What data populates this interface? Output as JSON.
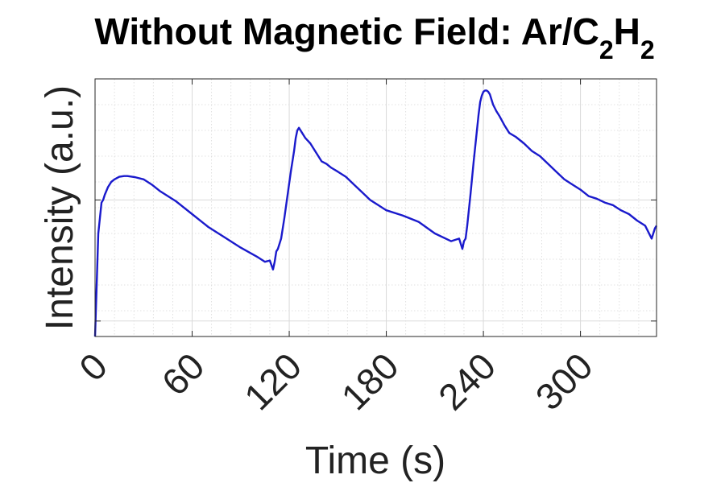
{
  "chart_data": {
    "type": "line",
    "title": {
      "main": "Without Magnetic Field: Ar/C",
      "sub1": "2",
      "mid": "H",
      "sub2": "2"
    },
    "xlabel": "Time (s)",
    "ylabel": "Intensity (a.u.)",
    "xlim": [
      0,
      347
    ],
    "ylim": [
      0,
      1
    ],
    "xticks": [
      0,
      60,
      120,
      180,
      240,
      300
    ],
    "xticklabels": [
      "0",
      "60",
      "120",
      "180",
      "240",
      "300"
    ],
    "yticks_shown_values": [
      0.06,
      0.53
    ],
    "grid": true,
    "minor_grid": true,
    "legend": null,
    "colors": {
      "line": "#1a1acc",
      "grid": "#d9d9d9",
      "axis": "#262626"
    },
    "series": [
      {
        "x": [
          0,
          1,
          2,
          3,
          4,
          5,
          6,
          8,
          10,
          12,
          15,
          18,
          20,
          25,
          30,
          35,
          40,
          50,
          60,
          70,
          80,
          90,
          100,
          105,
          108,
          110,
          111,
          112,
          113,
          115,
          117,
          119,
          121,
          123,
          124,
          125,
          126,
          127,
          128,
          130,
          133,
          136,
          140,
          143,
          146,
          150,
          155,
          160,
          165,
          170,
          175,
          180,
          190,
          200,
          210,
          220,
          225,
          227,
          228,
          229,
          230,
          232,
          234,
          236,
          237,
          238,
          239,
          240,
          241,
          242,
          243,
          244,
          245,
          246,
          248,
          250,
          253,
          256,
          260,
          265,
          270,
          275,
          280,
          285,
          290,
          295,
          300,
          305,
          310,
          315,
          320,
          325,
          330,
          335,
          340,
          344,
          345,
          346,
          347
        ],
        "values": [
          0.0,
          0.2,
          0.4,
          0.46,
          0.52,
          0.53,
          0.55,
          0.58,
          0.6,
          0.61,
          0.62,
          0.623,
          0.623,
          0.618,
          0.61,
          0.59,
          0.565,
          0.525,
          0.475,
          0.425,
          0.385,
          0.345,
          0.31,
          0.29,
          0.295,
          0.26,
          0.29,
          0.33,
          0.34,
          0.38,
          0.46,
          0.55,
          0.64,
          0.72,
          0.77,
          0.8,
          0.81,
          0.8,
          0.79,
          0.77,
          0.75,
          0.72,
          0.68,
          0.67,
          0.655,
          0.64,
          0.62,
          0.59,
          0.56,
          0.53,
          0.51,
          0.49,
          0.47,
          0.445,
          0.4,
          0.37,
          0.38,
          0.34,
          0.37,
          0.38,
          0.43,
          0.55,
          0.68,
          0.8,
          0.86,
          0.91,
          0.935,
          0.95,
          0.955,
          0.955,
          0.95,
          0.94,
          0.92,
          0.9,
          0.875,
          0.855,
          0.82,
          0.79,
          0.775,
          0.75,
          0.72,
          0.7,
          0.67,
          0.64,
          0.61,
          0.59,
          0.57,
          0.545,
          0.535,
          0.52,
          0.51,
          0.49,
          0.475,
          0.45,
          0.43,
          0.38,
          0.4,
          0.42,
          0.43
        ]
      }
    ]
  }
}
